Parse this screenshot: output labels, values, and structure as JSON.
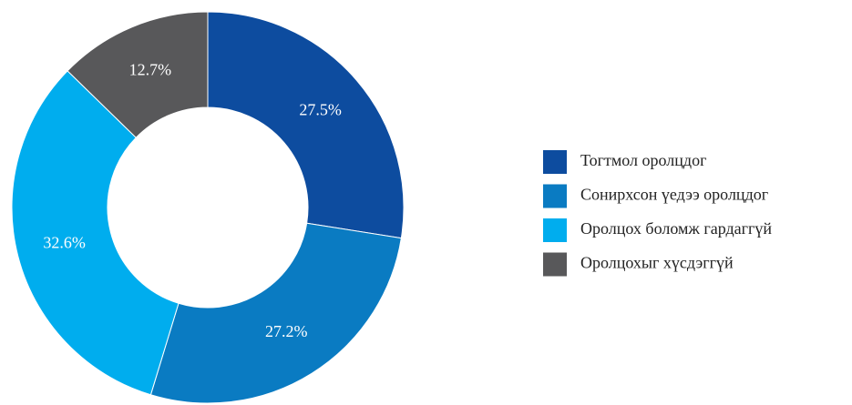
{
  "chart_data": {
    "type": "donut",
    "categories": [
      "Тогтмол оролцдог",
      "Сонирхсон үедээ оролцдог",
      "Оролцох боломж гардаггүй",
      "Оролцохыг хүсдэггүй"
    ],
    "values": [
      27.5,
      27.2,
      32.6,
      12.7
    ],
    "value_labels": [
      "27.5%",
      "27.2%",
      "32.6%",
      "12.7%"
    ],
    "colors": [
      "#0d4c9f",
      "#0a7bc2",
      "#00adee",
      "#58585a"
    ]
  }
}
